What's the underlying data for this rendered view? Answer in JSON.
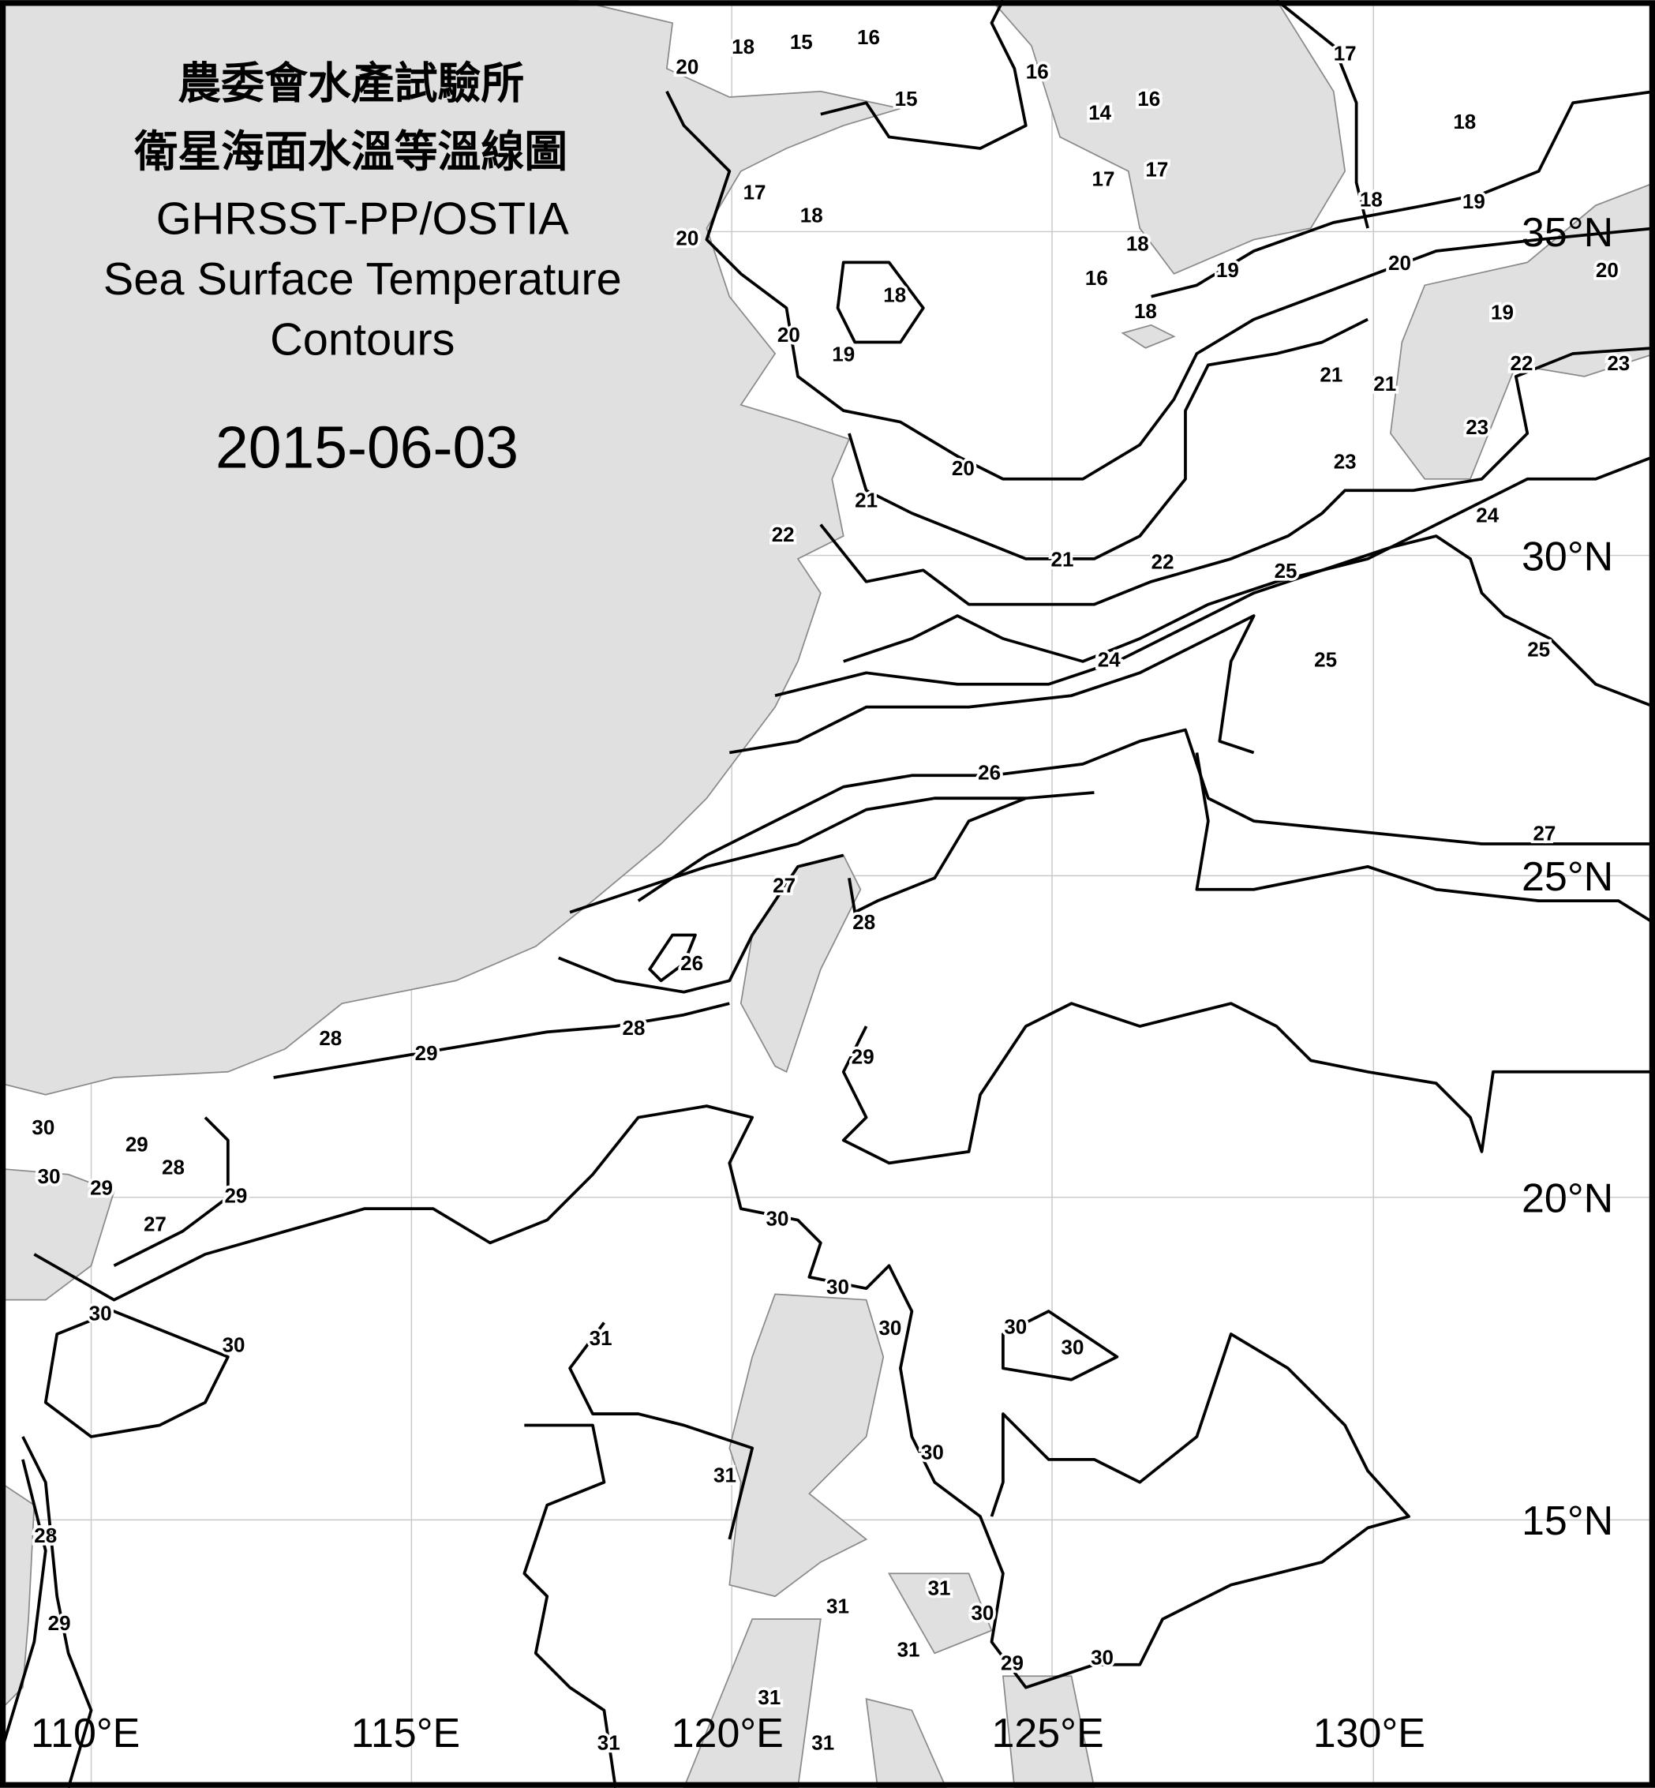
{
  "title": {
    "line1": "農委會水產試驗所",
    "line2": "衛星海面水溫等溫線圖",
    "line3": "GHRSST-PP/OSTIA",
    "line4": "Sea Surface Temperature",
    "line5": "Contours",
    "date": "2015-06-03"
  },
  "axes": {
    "lat_labels": [
      "35°N",
      "30°N",
      "25°N",
      "20°N",
      "15°N"
    ],
    "lon_labels": [
      "110°E",
      "115°E",
      "120°E",
      "125°E",
      "130°E"
    ]
  },
  "colors": {
    "land": "#e0e0e0",
    "sea": "#ffffff",
    "contour": "#000000",
    "grid": "#c8c8c8"
  },
  "contour_labels": [
    "18",
    "15",
    "16",
    "20",
    "15",
    "16",
    "16",
    "14",
    "17",
    "17",
    "17",
    "18",
    "17",
    "18",
    "20",
    "18",
    "18",
    "16",
    "19",
    "18",
    "18",
    "19",
    "20",
    "20",
    "19",
    "22",
    "23",
    "21",
    "21",
    "20",
    "19",
    "20",
    "23",
    "23",
    "24",
    "21",
    "22",
    "21",
    "22",
    "25",
    "25",
    "25",
    "24",
    "26",
    "27",
    "27",
    "28",
    "26",
    "28",
    "28",
    "29",
    "29",
    "30",
    "30",
    "29",
    "28",
    "29",
    "27",
    "29",
    "30",
    "30",
    "30",
    "30",
    "31",
    "30",
    "30",
    "30",
    "30",
    "31",
    "28",
    "29",
    "31",
    "31",
    "30",
    "31",
    "29",
    "30",
    "31",
    "31",
    "31"
  ]
}
